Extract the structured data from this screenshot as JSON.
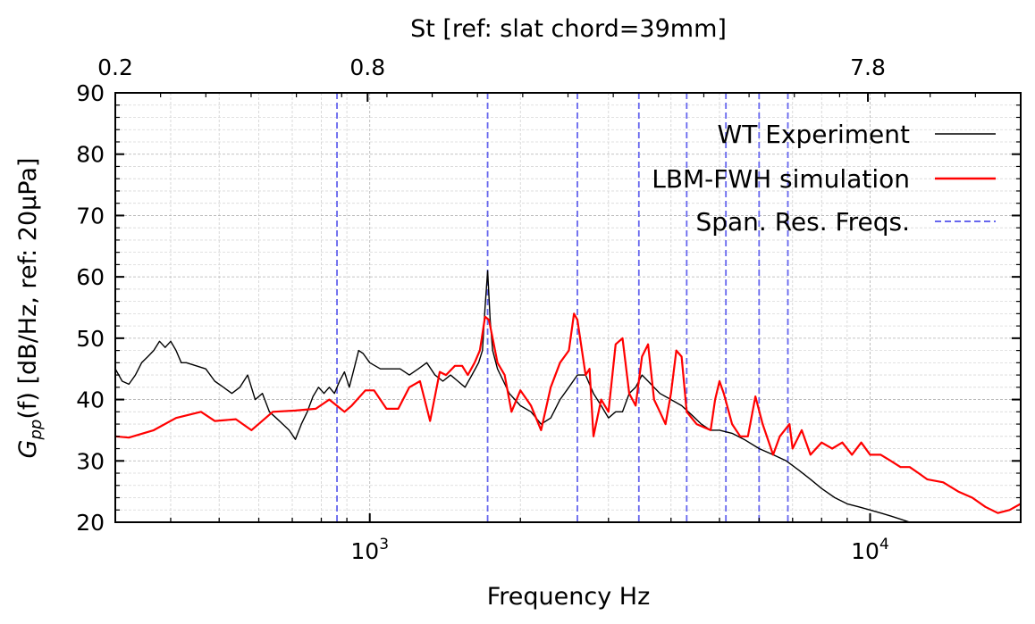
{
  "chart_data": {
    "type": "line",
    "x_scale": "log",
    "xlabel": "Frequency Hz",
    "ylabel": "G_pp(f) [dB/Hz, ref: 20μPa]",
    "ylabel_parts": {
      "symbol": "G",
      "sub": "pp",
      "rest": "(f) [dB/Hz, ref: 20μPa]"
    },
    "top_xlabel": "St [ref: slat chord=39mm]",
    "xlim": [
      310,
      20000
    ],
    "ylim": [
      20,
      90
    ],
    "y_ticks": [
      "20",
      "30",
      "40",
      "50",
      "60",
      "70",
      "80",
      "90"
    ],
    "x_ticks": [
      {
        "value": 1000,
        "base": "10",
        "exp": "3"
      },
      {
        "value": 10000,
        "base": "10",
        "exp": "4"
      }
    ],
    "top_ticks": [
      {
        "value": 310,
        "label": "0.2"
      },
      {
        "value": 990,
        "label": "0.8"
      },
      {
        "value": 9900,
        "label": "7.8"
      }
    ],
    "grid": true,
    "legend_position": "top-right",
    "series": [
      {
        "name": "WT Experiment",
        "color": "#000000",
        "points": [
          [
            310,
            45
          ],
          [
            320,
            43
          ],
          [
            330,
            42.5
          ],
          [
            340,
            44
          ],
          [
            350,
            46
          ],
          [
            360,
            47
          ],
          [
            370,
            48
          ],
          [
            380,
            49.5
          ],
          [
            390,
            48.5
          ],
          [
            400,
            49.5
          ],
          [
            410,
            48
          ],
          [
            420,
            46
          ],
          [
            430,
            46
          ],
          [
            450,
            45.5
          ],
          [
            470,
            45
          ],
          [
            490,
            43
          ],
          [
            510,
            42
          ],
          [
            530,
            41
          ],
          [
            550,
            42
          ],
          [
            570,
            44
          ],
          [
            590,
            40
          ],
          [
            610,
            41
          ],
          [
            630,
            38
          ],
          [
            650,
            37
          ],
          [
            670,
            36
          ],
          [
            690,
            35
          ],
          [
            710,
            33.5
          ],
          [
            730,
            36
          ],
          [
            750,
            38
          ],
          [
            770,
            40.5
          ],
          [
            790,
            42
          ],
          [
            810,
            41
          ],
          [
            830,
            42
          ],
          [
            850,
            41
          ],
          [
            870,
            43
          ],
          [
            890,
            44.5
          ],
          [
            910,
            42
          ],
          [
            930,
            45
          ],
          [
            950,
            48
          ],
          [
            970,
            47.5
          ],
          [
            1000,
            46
          ],
          [
            1050,
            45
          ],
          [
            1100,
            45
          ],
          [
            1150,
            45
          ],
          [
            1200,
            44
          ],
          [
            1250,
            45
          ],
          [
            1300,
            46
          ],
          [
            1350,
            44
          ],
          [
            1400,
            43
          ],
          [
            1450,
            44
          ],
          [
            1500,
            43
          ],
          [
            1550,
            42
          ],
          [
            1600,
            44
          ],
          [
            1650,
            46
          ],
          [
            1680,
            48
          ],
          [
            1700,
            55
          ],
          [
            1720,
            61
          ],
          [
            1740,
            53
          ],
          [
            1760,
            48
          ],
          [
            1800,
            45
          ],
          [
            1850,
            43
          ],
          [
            1900,
            41
          ],
          [
            1950,
            40
          ],
          [
            2000,
            39
          ],
          [
            2100,
            38
          ],
          [
            2200,
            36
          ],
          [
            2300,
            37
          ],
          [
            2400,
            40
          ],
          [
            2500,
            42
          ],
          [
            2600,
            44
          ],
          [
            2700,
            44
          ],
          [
            2800,
            41
          ],
          [
            2900,
            39
          ],
          [
            3000,
            37
          ],
          [
            3100,
            38
          ],
          [
            3200,
            38
          ],
          [
            3300,
            41
          ],
          [
            3400,
            42
          ],
          [
            3500,
            44
          ],
          [
            3600,
            43
          ],
          [
            3800,
            41
          ],
          [
            4000,
            40
          ],
          [
            4200,
            39
          ],
          [
            4400,
            37.5
          ],
          [
            4600,
            36
          ],
          [
            4800,
            35
          ],
          [
            5000,
            35
          ],
          [
            5300,
            34.5
          ],
          [
            5600,
            33.5
          ],
          [
            6000,
            32
          ],
          [
            6400,
            31
          ],
          [
            6800,
            30
          ],
          [
            7200,
            28.5
          ],
          [
            7600,
            27
          ],
          [
            8000,
            25.5
          ],
          [
            8500,
            24
          ],
          [
            9000,
            23
          ],
          [
            9500,
            22.5
          ],
          [
            10000,
            22
          ],
          [
            10500,
            21.5
          ],
          [
            11000,
            21
          ],
          [
            11500,
            20.5
          ],
          [
            12000,
            20
          ]
        ]
      },
      {
        "name": "LBM-FWH simulation",
        "color": "#ff0000",
        "points": [
          [
            310,
            34
          ],
          [
            330,
            33.8
          ],
          [
            370,
            35
          ],
          [
            410,
            37
          ],
          [
            460,
            38
          ],
          [
            490,
            36.5
          ],
          [
            540,
            36.8
          ],
          [
            580,
            35
          ],
          [
            640,
            38
          ],
          [
            710,
            38.2
          ],
          [
            780,
            38.5
          ],
          [
            830,
            40
          ],
          [
            890,
            38
          ],
          [
            920,
            39
          ],
          [
            980,
            41.5
          ],
          [
            1020,
            41.5
          ],
          [
            1080,
            38.5
          ],
          [
            1140,
            38.5
          ],
          [
            1200,
            42
          ],
          [
            1260,
            43
          ],
          [
            1320,
            36.5
          ],
          [
            1380,
            44.5
          ],
          [
            1420,
            44
          ],
          [
            1480,
            45.5
          ],
          [
            1530,
            45.5
          ],
          [
            1570,
            44
          ],
          [
            1620,
            46
          ],
          [
            1660,
            48
          ],
          [
            1700,
            53.5
          ],
          [
            1730,
            53
          ],
          [
            1760,
            50
          ],
          [
            1800,
            46
          ],
          [
            1860,
            44
          ],
          [
            1920,
            38
          ],
          [
            2000,
            41.5
          ],
          [
            2100,
            39
          ],
          [
            2200,
            35
          ],
          [
            2300,
            42
          ],
          [
            2400,
            46
          ],
          [
            2500,
            48
          ],
          [
            2560,
            54
          ],
          [
            2600,
            53
          ],
          [
            2700,
            44
          ],
          [
            2750,
            45
          ],
          [
            2800,
            34
          ],
          [
            2900,
            40
          ],
          [
            3000,
            38
          ],
          [
            3100,
            49
          ],
          [
            3200,
            50
          ],
          [
            3300,
            41
          ],
          [
            3400,
            39
          ],
          [
            3500,
            47
          ],
          [
            3600,
            49
          ],
          [
            3700,
            40
          ],
          [
            3800,
            38
          ],
          [
            3900,
            36
          ],
          [
            4000,
            41
          ],
          [
            4100,
            48
          ],
          [
            4200,
            47
          ],
          [
            4300,
            38
          ],
          [
            4500,
            36
          ],
          [
            4800,
            35
          ],
          [
            4900,
            40
          ],
          [
            5000,
            43
          ],
          [
            5100,
            41
          ],
          [
            5300,
            36
          ],
          [
            5500,
            34
          ],
          [
            5700,
            34
          ],
          [
            5900,
            40.5
          ],
          [
            6100,
            36
          ],
          [
            6400,
            31
          ],
          [
            6600,
            34
          ],
          [
            6900,
            36
          ],
          [
            7000,
            32
          ],
          [
            7300,
            35
          ],
          [
            7600,
            31
          ],
          [
            8000,
            33
          ],
          [
            8400,
            32
          ],
          [
            8800,
            33
          ],
          [
            9200,
            31
          ],
          [
            9600,
            33
          ],
          [
            10000,
            31
          ],
          [
            10500,
            31
          ],
          [
            11000,
            30
          ],
          [
            11500,
            29
          ],
          [
            12000,
            29
          ],
          [
            12500,
            28
          ],
          [
            13000,
            27
          ],
          [
            14000,
            26.5
          ],
          [
            15000,
            25
          ],
          [
            16000,
            24
          ],
          [
            17000,
            22.5
          ],
          [
            18000,
            21.5
          ],
          [
            19000,
            22
          ],
          [
            20000,
            23
          ]
        ]
      },
      {
        "name": "Span. Res. Freqs.",
        "color": "#6666ee",
        "dashed": true,
        "x_values": [
          860,
          1720,
          2600,
          3450,
          4300,
          5150,
          6000,
          6850
        ]
      }
    ]
  }
}
